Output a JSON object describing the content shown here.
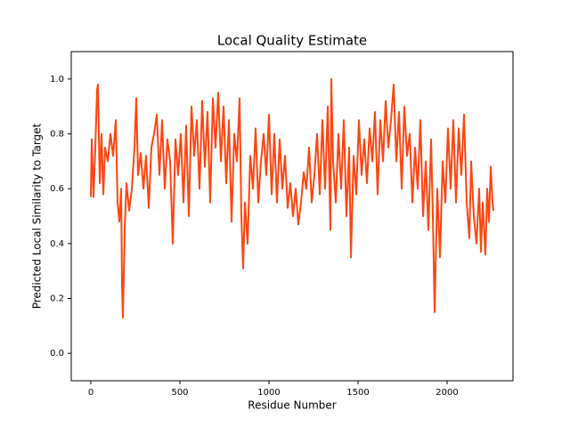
{
  "chart_data": {
    "type": "line",
    "title": "Local Quality Estimate",
    "xlabel": "Residue Number",
    "ylabel": "Predicted Local Similarity to Target",
    "x": [
      0,
      5,
      15,
      25,
      35,
      40,
      50,
      60,
      70,
      80,
      95,
      110,
      125,
      140,
      150,
      160,
      170,
      175,
      180,
      190,
      200,
      215,
      230,
      245,
      255,
      265,
      280,
      295,
      310,
      325,
      340,
      355,
      370,
      385,
      400,
      415,
      430,
      445,
      460,
      475,
      490,
      505,
      520,
      535,
      550,
      565,
      580,
      595,
      610,
      625,
      640,
      655,
      670,
      685,
      700,
      715,
      730,
      745,
      760,
      775,
      790,
      805,
      820,
      835,
      845,
      855,
      865,
      880,
      895,
      910,
      925,
      940,
      955,
      970,
      985,
      1000,
      1015,
      1030,
      1045,
      1060,
      1075,
      1090,
      1105,
      1120,
      1135,
      1150,
      1165,
      1180,
      1195,
      1210,
      1225,
      1240,
      1255,
      1270,
      1285,
      1300,
      1315,
      1330,
      1345,
      1350,
      1360,
      1375,
      1390,
      1405,
      1420,
      1435,
      1450,
      1460,
      1475,
      1490,
      1505,
      1520,
      1535,
      1550,
      1565,
      1580,
      1595,
      1610,
      1625,
      1640,
      1655,
      1670,
      1685,
      1700,
      1715,
      1730,
      1745,
      1760,
      1775,
      1790,
      1805,
      1820,
      1835,
      1850,
      1865,
      1880,
      1895,
      1910,
      1920,
      1930,
      1945,
      1960,
      1975,
      1990,
      2005,
      2020,
      2035,
      2050,
      2065,
      2080,
      2095,
      2110,
      2125,
      2135,
      2150,
      2165,
      2180,
      2190,
      2200,
      2215,
      2225,
      2235,
      2245,
      2255,
      2260
    ],
    "series": [
      {
        "color": "#ff4510",
        "values": [
          0.57,
          0.78,
          0.57,
          0.75,
          0.96,
          0.98,
          0.62,
          0.8,
          0.58,
          0.75,
          0.7,
          0.8,
          0.72,
          0.85,
          0.55,
          0.48,
          0.6,
          0.25,
          0.13,
          0.45,
          0.62,
          0.52,
          0.6,
          0.75,
          0.93,
          0.65,
          0.73,
          0.6,
          0.72,
          0.53,
          0.75,
          0.8,
          0.87,
          0.65,
          0.85,
          0.6,
          0.78,
          0.7,
          0.4,
          0.78,
          0.65,
          0.8,
          0.55,
          0.83,
          0.5,
          0.9,
          0.72,
          0.85,
          0.6,
          0.92,
          0.68,
          0.88,
          0.55,
          0.93,
          0.75,
          0.95,
          0.7,
          0.9,
          0.62,
          0.85,
          0.48,
          0.8,
          0.7,
          0.93,
          0.5,
          0.31,
          0.55,
          0.4,
          0.72,
          0.6,
          0.82,
          0.55,
          0.7,
          0.8,
          0.65,
          0.87,
          0.58,
          0.8,
          0.55,
          0.78,
          0.6,
          0.72,
          0.53,
          0.62,
          0.5,
          0.6,
          0.47,
          0.55,
          0.66,
          0.6,
          0.75,
          0.55,
          0.65,
          0.8,
          0.58,
          0.85,
          0.6,
          0.9,
          0.45,
          1.0,
          0.7,
          0.55,
          0.8,
          0.6,
          0.85,
          0.5,
          0.75,
          0.35,
          0.72,
          0.58,
          0.85,
          0.65,
          0.78,
          0.62,
          0.82,
          0.7,
          0.88,
          0.58,
          0.85,
          0.7,
          0.92,
          0.75,
          0.85,
          0.98,
          0.7,
          0.88,
          0.6,
          0.9,
          0.72,
          0.8,
          0.55,
          0.75,
          0.6,
          0.85,
          0.5,
          0.7,
          0.45,
          0.78,
          0.5,
          0.15,
          0.6,
          0.35,
          0.7,
          0.55,
          0.82,
          0.6,
          0.85,
          0.55,
          0.82,
          0.65,
          0.87,
          0.55,
          0.42,
          0.7,
          0.5,
          0.4,
          0.6,
          0.37,
          0.55,
          0.36,
          0.6,
          0.48,
          0.68,
          0.55,
          0.52
        ]
      }
    ],
    "xlim": [
      -110,
      2370
    ],
    "ylim": [
      -0.1,
      1.1
    ],
    "xticks": [
      0,
      500,
      1000,
      1500,
      2000
    ],
    "yticks": [
      {
        "value": 0,
        "label": "0.0"
      },
      0.2,
      0.4,
      0.6,
      0.8,
      {
        "value": 1,
        "label": "1.0"
      }
    ]
  }
}
